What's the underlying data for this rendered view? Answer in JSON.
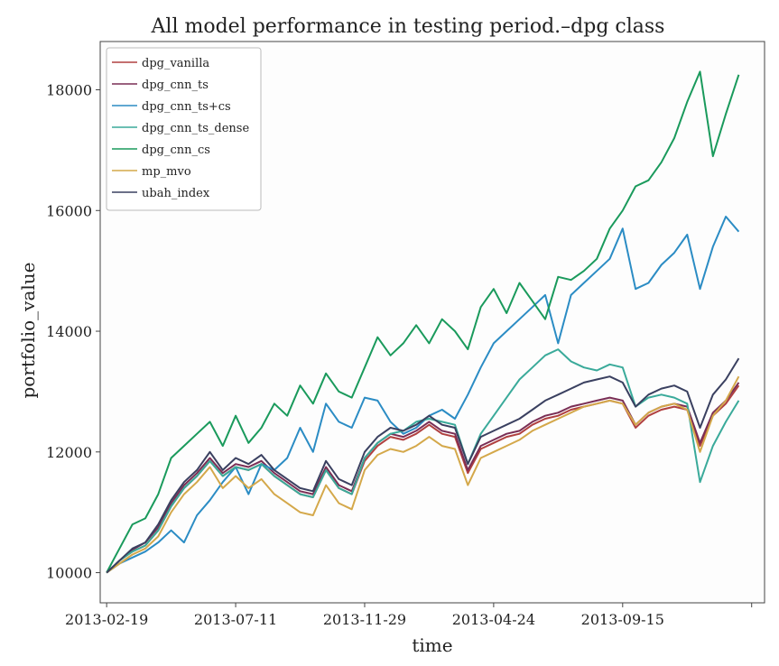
{
  "chart_data": {
    "type": "line",
    "title": "All model performance in testing period.–dpg class",
    "xlabel": "time",
    "ylabel": "portfolio_value",
    "x_ticks": [
      "2013-02-19",
      "2013-07-11",
      "2013-11-29",
      "2013-04-24",
      "2013-09-15"
    ],
    "y_ticks": [
      "10000",
      "12000",
      "14000",
      "16000",
      "18000"
    ],
    "ylim": [
      9500,
      18800
    ],
    "xlim": [
      -0.05,
      5.1
    ],
    "grid": false,
    "legend_position": "top-left",
    "series": [
      {
        "name": "dpg_vanilla",
        "color": "#b04040",
        "x": [
          0,
          0.1,
          0.2,
          0.3,
          0.4,
          0.5,
          0.6,
          0.7,
          0.8,
          0.9,
          1.0,
          1.1,
          1.2,
          1.3,
          1.4,
          1.5,
          1.6,
          1.7,
          1.8,
          1.9,
          2.0,
          2.1,
          2.2,
          2.3,
          2.4,
          2.5,
          2.6,
          2.7,
          2.8,
          2.9,
          3.0,
          3.1,
          3.2,
          3.3,
          3.4,
          3.5,
          3.6,
          3.7,
          3.8,
          3.9,
          4.0,
          4.1,
          4.2,
          4.3,
          4.4,
          4.5,
          4.6,
          4.7,
          4.8,
          4.9
        ],
        "values": [
          10000,
          10200,
          10350,
          10450,
          10700,
          11100,
          11400,
          11600,
          11850,
          11600,
          11750,
          11700,
          11800,
          11600,
          11450,
          11300,
          11250,
          11700,
          11400,
          11300,
          11850,
          12100,
          12250,
          12200,
          12300,
          12450,
          12300,
          12250,
          11650,
          12050,
          12150,
          12250,
          12300,
          12450,
          12550,
          12600,
          12700,
          12750,
          12800,
          12850,
          12800,
          12400,
          12600,
          12700,
          12750,
          12700,
          12100,
          12600,
          12800,
          13100
        ]
      },
      {
        "name": "dpg_cnn_ts",
        "color": "#7a2e55",
        "x": [
          0,
          0.1,
          0.2,
          0.3,
          0.4,
          0.5,
          0.6,
          0.7,
          0.8,
          0.9,
          1.0,
          1.1,
          1.2,
          1.3,
          1.4,
          1.5,
          1.6,
          1.7,
          1.8,
          1.9,
          2.0,
          2.1,
          2.2,
          2.3,
          2.4,
          2.5,
          2.6,
          2.7,
          2.8,
          2.9,
          3.0,
          3.1,
          3.2,
          3.3,
          3.4,
          3.5,
          3.6,
          3.7,
          3.8,
          3.9,
          4.0,
          4.1,
          4.2,
          4.3,
          4.4,
          4.5,
          4.6,
          4.7,
          4.8,
          4.9
        ],
        "values": [
          10000,
          10200,
          10380,
          10500,
          10750,
          11150,
          11450,
          11650,
          11900,
          11650,
          11800,
          11750,
          11850,
          11650,
          11500,
          11350,
          11300,
          11750,
          11450,
          11350,
          11900,
          12150,
          12300,
          12250,
          12350,
          12500,
          12350,
          12300,
          11700,
          12100,
          12200,
          12300,
          12350,
          12500,
          12600,
          12650,
          12750,
          12800,
          12850,
          12900,
          12850,
          12450,
          12650,
          12750,
          12800,
          12750,
          12150,
          12650,
          12850,
          13150
        ]
      },
      {
        "name": "dpg_cnn_ts+cs",
        "color": "#2b8cc4",
        "x": [
          0,
          0.1,
          0.2,
          0.3,
          0.4,
          0.5,
          0.6,
          0.7,
          0.8,
          0.9,
          1.0,
          1.1,
          1.2,
          1.3,
          1.4,
          1.5,
          1.6,
          1.7,
          1.8,
          1.9,
          2.0,
          2.1,
          2.2,
          2.3,
          2.4,
          2.5,
          2.6,
          2.7,
          2.8,
          2.9,
          3.0,
          3.1,
          3.2,
          3.3,
          3.4,
          3.5,
          3.6,
          3.7,
          3.8,
          3.9,
          4.0,
          4.1,
          4.2,
          4.3,
          4.4,
          4.5,
          4.6,
          4.7,
          4.8,
          4.9
        ],
        "values": [
          10000,
          10150,
          10250,
          10350,
          10500,
          10700,
          10500,
          10950,
          11200,
          11500,
          11750,
          11300,
          11800,
          11700,
          11900,
          12400,
          12000,
          12800,
          12500,
          12400,
          12900,
          12850,
          12500,
          12300,
          12400,
          12600,
          12700,
          12550,
          12950,
          13400,
          13800,
          14000,
          14200,
          14400,
          14600,
          13800,
          14600,
          14800,
          15000,
          15200,
          15700,
          14700,
          14800,
          15100,
          15300,
          15600,
          14700,
          15400,
          15900,
          15650
        ]
      },
      {
        "name": "dpg_cnn_ts_dense",
        "color": "#3aaa9a",
        "x": [
          0,
          0.1,
          0.2,
          0.3,
          0.4,
          0.5,
          0.6,
          0.7,
          0.8,
          0.9,
          1.0,
          1.1,
          1.2,
          1.3,
          1.4,
          1.5,
          1.6,
          1.7,
          1.8,
          1.9,
          2.0,
          2.1,
          2.2,
          2.3,
          2.4,
          2.5,
          2.6,
          2.7,
          2.8,
          2.9,
          3.0,
          3.1,
          3.2,
          3.3,
          3.4,
          3.5,
          3.6,
          3.7,
          3.8,
          3.9,
          4.0,
          4.1,
          4.2,
          4.3,
          4.4,
          4.5,
          4.6,
          4.7,
          4.8,
          4.9
        ],
        "values": [
          10000,
          10200,
          10350,
          10450,
          10700,
          11100,
          11400,
          11600,
          11850,
          11600,
          11750,
          11700,
          11800,
          11600,
          11450,
          11300,
          11250,
          11700,
          11400,
          11300,
          11900,
          12150,
          12300,
          12350,
          12500,
          12550,
          12500,
          12450,
          11800,
          12300,
          12600,
          12900,
          13200,
          13400,
          13600,
          13700,
          13500,
          13400,
          13350,
          13450,
          13400,
          12750,
          12900,
          12950,
          12900,
          12800,
          11500,
          12100,
          12500,
          12850
        ]
      },
      {
        "name": "dpg_cnn_cs",
        "color": "#1a9a5c",
        "x": [
          0,
          0.1,
          0.2,
          0.3,
          0.4,
          0.5,
          0.6,
          0.7,
          0.8,
          0.9,
          1.0,
          1.1,
          1.2,
          1.3,
          1.4,
          1.5,
          1.6,
          1.7,
          1.8,
          1.9,
          2.0,
          2.1,
          2.2,
          2.3,
          2.4,
          2.5,
          2.6,
          2.7,
          2.8,
          2.9,
          3.0,
          3.1,
          3.2,
          3.3,
          3.4,
          3.5,
          3.6,
          3.7,
          3.8,
          3.9,
          4.0,
          4.1,
          4.2,
          4.3,
          4.4,
          4.5,
          4.6,
          4.7,
          4.8,
          4.9
        ],
        "values": [
          10000,
          10400,
          10800,
          10900,
          11300,
          11900,
          12100,
          12300,
          12500,
          12100,
          12600,
          12150,
          12400,
          12800,
          12600,
          13100,
          12800,
          13300,
          13000,
          12900,
          13400,
          13900,
          13600,
          13800,
          14100,
          13800,
          14200,
          14000,
          13700,
          14400,
          14700,
          14300,
          14800,
          14500,
          14200,
          14900,
          14850,
          15000,
          15200,
          15700,
          16000,
          16400,
          16500,
          16800,
          17200,
          17800,
          18300,
          16900,
          17600,
          18250
        ]
      },
      {
        "name": "mp_mvo",
        "color": "#d4a84a",
        "x": [
          0,
          0.1,
          0.2,
          0.3,
          0.4,
          0.5,
          0.6,
          0.7,
          0.8,
          0.9,
          1.0,
          1.1,
          1.2,
          1.3,
          1.4,
          1.5,
          1.6,
          1.7,
          1.8,
          1.9,
          2.0,
          2.1,
          2.2,
          2.3,
          2.4,
          2.5,
          2.6,
          2.7,
          2.8,
          2.9,
          3.0,
          3.1,
          3.2,
          3.3,
          3.4,
          3.5,
          3.6,
          3.7,
          3.8,
          3.9,
          4.0,
          4.1,
          4.2,
          4.3,
          4.4,
          4.5,
          4.6,
          4.7,
          4.8,
          4.9
        ],
        "values": [
          10000,
          10150,
          10300,
          10400,
          10600,
          11000,
          11300,
          11500,
          11750,
          11400,
          11600,
          11400,
          11550,
          11300,
          11150,
          11000,
          10950,
          11450,
          11150,
          11050,
          11700,
          11950,
          12050,
          12000,
          12100,
          12250,
          12100,
          12050,
          11450,
          11900,
          12000,
          12100,
          12200,
          12350,
          12450,
          12550,
          12650,
          12750,
          12800,
          12850,
          12800,
          12450,
          12650,
          12750,
          12800,
          12700,
          12000,
          12600,
          12850,
          13250
        ]
      },
      {
        "name": "ubah_index",
        "color": "#3a4060",
        "x": [
          0,
          0.1,
          0.2,
          0.3,
          0.4,
          0.5,
          0.6,
          0.7,
          0.8,
          0.9,
          1.0,
          1.1,
          1.2,
          1.3,
          1.4,
          1.5,
          1.6,
          1.7,
          1.8,
          1.9,
          2.0,
          2.1,
          2.2,
          2.3,
          2.4,
          2.5,
          2.6,
          2.7,
          2.8,
          2.9,
          3.0,
          3.1,
          3.2,
          3.3,
          3.4,
          3.5,
          3.6,
          3.7,
          3.8,
          3.9,
          4.0,
          4.1,
          4.2,
          4.3,
          4.4,
          4.5,
          4.6,
          4.7,
          4.8,
          4.9
        ],
        "values": [
          10000,
          10200,
          10400,
          10500,
          10800,
          11200,
          11500,
          11700,
          12000,
          11700,
          11900,
          11800,
          11950,
          11700,
          11550,
          11400,
          11350,
          11850,
          11550,
          11450,
          12000,
          12250,
          12400,
          12350,
          12450,
          12600,
          12450,
          12400,
          11800,
          12250,
          12350,
          12450,
          12550,
          12700,
          12850,
          12950,
          13050,
          13150,
          13200,
          13250,
          13150,
          12750,
          12950,
          13050,
          13100,
          13000,
          12400,
          12950,
          13200,
          13550
        ]
      }
    ]
  }
}
